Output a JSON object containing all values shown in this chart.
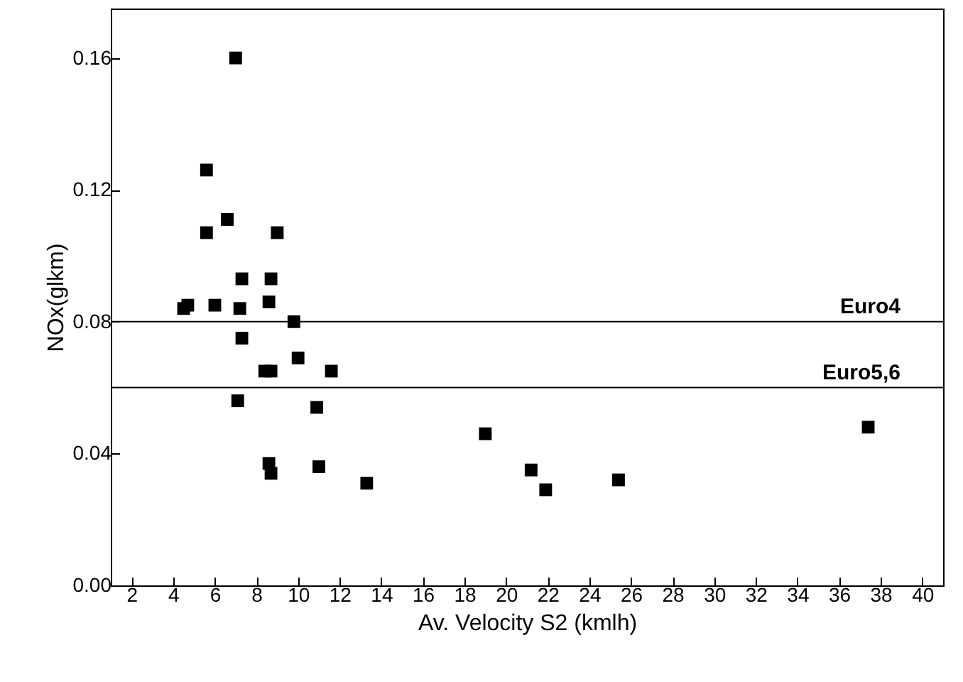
{
  "chart_data": {
    "type": "scatter",
    "xlabel": "Av. Velocity S2 (kmlh)",
    "ylabel": "NOx(glkm)",
    "x": [
      7.0,
      5.6,
      6.6,
      5.6,
      9.0,
      7.3,
      8.7,
      4.5,
      4.7,
      6.0,
      7.2,
      8.6,
      9.8,
      7.3,
      10.0,
      8.4,
      8.7,
      11.6,
      7.1,
      10.9,
      8.6,
      8.7,
      11.0,
      13.3,
      19.0,
      21.2,
      21.9,
      25.4,
      37.4
    ],
    "series": [
      {
        "color": "#000000",
        "values": [
          0.16,
          0.126,
          0.111,
          0.107,
          0.107,
          0.093,
          0.093,
          0.084,
          0.085,
          0.085,
          0.084,
          0.086,
          0.08,
          0.075,
          0.069,
          0.065,
          0.065,
          0.065,
          0.056,
          0.054,
          0.037,
          0.034,
          0.036,
          0.031,
          0.046,
          0.035,
          0.029,
          0.032,
          0.048
        ]
      }
    ],
    "marker": "square",
    "xlim": [
      1,
      41
    ],
    "xticks": [
      2,
      4,
      6,
      8,
      10,
      12,
      14,
      16,
      18,
      20,
      22,
      24,
      26,
      28,
      30,
      32,
      34,
      36,
      38,
      40
    ],
    "ylim": [
      0,
      0.175
    ],
    "yticks": [
      {
        "value": 0,
        "label": "0.00"
      },
      {
        "value": 0.04,
        "label": "0.04"
      },
      {
        "value": 0.08,
        "label": "0.08"
      },
      {
        "value": 0.12,
        "label": "0.12"
      },
      {
        "value": 0.16,
        "label": "0.16"
      }
    ],
    "ref_lines": [
      {
        "axis": "y",
        "value": 0.08,
        "label": "Euro4",
        "color": "#000000"
      },
      {
        "axis": "y",
        "value": 0.06,
        "label": "Euro5,6",
        "color": "#000000"
      }
    ],
    "grid": false
  }
}
